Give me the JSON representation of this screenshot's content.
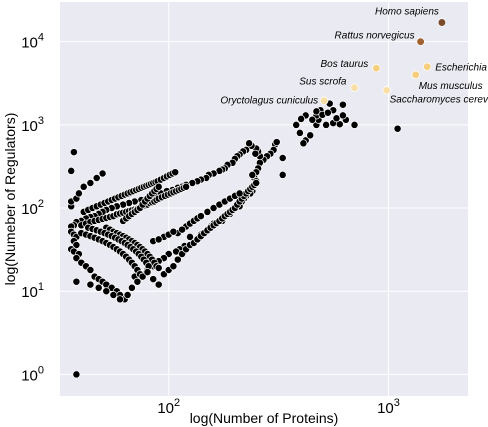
{
  "chart_data": {
    "type": "scatter",
    "title": "",
    "xlabel": "log(Number of Proteins)",
    "ylabel": "log(Numeber of Regulators)",
    "xscale": "log",
    "yscale": "log",
    "xlim": [
      32,
      2300
    ],
    "ylim": [
      0.55,
      30000
    ],
    "grid": true,
    "background": "#eaeaf2",
    "x_ticks": [
      {
        "value": 100,
        "base": "10",
        "exp": "2"
      },
      {
        "value": 1000,
        "base": "10",
        "exp": "3"
      }
    ],
    "y_ticks": [
      {
        "value": 1,
        "base": "10",
        "exp": "0"
      },
      {
        "value": 10,
        "base": "10",
        "exp": "1"
      },
      {
        "value": 100,
        "base": "10",
        "exp": "2"
      },
      {
        "value": 1000,
        "base": "10",
        "exp": "3"
      },
      {
        "value": 10000,
        "base": "10",
        "exp": "4"
      }
    ],
    "points_color": "#000000",
    "highlighted": [
      {
        "label": "Homo sapiens",
        "x": 1750,
        "y": 17000,
        "color": "#7a4a2a"
      },
      {
        "label": "Rattus norvegicus",
        "x": 1400,
        "y": 10000,
        "color": "#a0622f"
      },
      {
        "label": "Escherichia coli",
        "x": 1500,
        "y": 5000,
        "color": "#f5cf7e"
      },
      {
        "label": "Bos taurus",
        "x": 880,
        "y": 4800,
        "color": "#f5cf7e"
      },
      {
        "label": "Mus musculus",
        "x": 1330,
        "y": 4000,
        "color": "#f5cf7e"
      },
      {
        "label": "Sus scrofa",
        "x": 700,
        "y": 2800,
        "color": "#f7dfa6"
      },
      {
        "label": "Saccharomyces cerevisiae",
        "x": 980,
        "y": 2600,
        "color": "#f7dfa6"
      },
      {
        "label": "Oryctolagus cuniculus",
        "x": 510,
        "y": 1950,
        "color": "#f7dfa6"
      }
    ],
    "points": [
      [
        1100,
        900
      ],
      [
        700,
        1000
      ],
      [
        520,
        1000
      ],
      [
        560,
        1050
      ],
      [
        470,
        1000
      ],
      [
        480,
        1150
      ],
      [
        470,
        1300
      ],
      [
        450,
        1150
      ],
      [
        490,
        1500
      ],
      [
        470,
        1450
      ],
      [
        600,
        1020
      ],
      [
        640,
        1150
      ],
      [
        580,
        1200
      ],
      [
        620,
        1300
      ],
      [
        560,
        1500
      ],
      [
        500,
        1320
      ],
      [
        530,
        1400
      ],
      [
        540,
        1800
      ],
      [
        620,
        1750
      ],
      [
        420,
        1300
      ],
      [
        400,
        1180
      ],
      [
        380,
        1000
      ],
      [
        395,
        800
      ],
      [
        420,
        650
      ],
      [
        410,
        600
      ],
      [
        440,
        750
      ],
      [
        330,
        250
      ],
      [
        330,
        400
      ],
      [
        305,
        580
      ],
      [
        310,
        620
      ],
      [
        300,
        500
      ],
      [
        290,
        450
      ],
      [
        280,
        420
      ],
      [
        270,
        380
      ],
      [
        260,
        350
      ],
      [
        255,
        300
      ],
      [
        250,
        270
      ],
      [
        245,
        230
      ],
      [
        240,
        250
      ],
      [
        250,
        210
      ],
      [
        240,
        160
      ],
      [
        235,
        150
      ],
      [
        225,
        140
      ],
      [
        220,
        130
      ],
      [
        215,
        120
      ],
      [
        210,
        105
      ],
      [
        200,
        100
      ],
      [
        190,
        85
      ],
      [
        180,
        80
      ],
      [
        175,
        70
      ],
      [
        160,
        65
      ],
      [
        155,
        60
      ],
      [
        150,
        55
      ],
      [
        145,
        50
      ],
      [
        140,
        48
      ],
      [
        135,
        42
      ],
      [
        130,
        40
      ],
      [
        125,
        45
      ],
      [
        118,
        35
      ],
      [
        112,
        32
      ],
      [
        108,
        30
      ],
      [
        100,
        28
      ],
      [
        95,
        25
      ],
      [
        90,
        23
      ],
      [
        85,
        20
      ],
      [
        80,
        18
      ],
      [
        75,
        16
      ],
      [
        70,
        15
      ],
      [
        260,
        420
      ],
      [
        255,
        480
      ],
      [
        250,
        520
      ],
      [
        248,
        450
      ],
      [
        238,
        560
      ],
      [
        232,
        600
      ],
      [
        225,
        500
      ],
      [
        218,
        480
      ],
      [
        210,
        440
      ],
      [
        205,
        420
      ],
      [
        200,
        390
      ],
      [
        195,
        350
      ],
      [
        185,
        330
      ],
      [
        180,
        300
      ],
      [
        175,
        290
      ],
      [
        170,
        280
      ],
      [
        160,
        260
      ],
      [
        152,
        250
      ],
      [
        148,
        230
      ],
      [
        140,
        220
      ],
      [
        135,
        210
      ],
      [
        128,
        200
      ],
      [
        120,
        190
      ],
      [
        115,
        180
      ],
      [
        110,
        175
      ],
      [
        104,
        165
      ],
      [
        98,
        160
      ],
      [
        92,
        150
      ],
      [
        86,
        140
      ],
      [
        80,
        130
      ],
      [
        75,
        125
      ],
      [
        70,
        120
      ],
      [
        66,
        115
      ],
      [
        62,
        110
      ],
      [
        58,
        105
      ],
      [
        55,
        100
      ],
      [
        52,
        95
      ],
      [
        50,
        90
      ],
      [
        48,
        85
      ],
      [
        46,
        80
      ],
      [
        44,
        78
      ],
      [
        42,
        75
      ],
      [
        40,
        70
      ],
      [
        38,
        68
      ],
      [
        37,
        62
      ],
      [
        36,
        60
      ],
      [
        36,
        52
      ],
      [
        37,
        48
      ],
      [
        38,
        45
      ],
      [
        37,
        40
      ],
      [
        38,
        36
      ],
      [
        36,
        32
      ],
      [
        37,
        30
      ],
      [
        39,
        28
      ],
      [
        38,
        25
      ],
      [
        40,
        22
      ],
      [
        42,
        20
      ],
      [
        44,
        18
      ],
      [
        46,
        15
      ],
      [
        48,
        14
      ],
      [
        50,
        13
      ],
      [
        52,
        12
      ],
      [
        55,
        11
      ],
      [
        58,
        10
      ],
      [
        60,
        9
      ],
      [
        63,
        8
      ],
      [
        40,
        62
      ],
      [
        42,
        65
      ],
      [
        44,
        68
      ],
      [
        46,
        70
      ],
      [
        48,
        72
      ],
      [
        50,
        74
      ],
      [
        52,
        76
      ],
      [
        54,
        78
      ],
      [
        56,
        80
      ],
      [
        58,
        84
      ],
      [
        60,
        86
      ],
      [
        62,
        88
      ],
      [
        64,
        90
      ],
      [
        66,
        92
      ],
      [
        68,
        94
      ],
      [
        70,
        96
      ],
      [
        72,
        98
      ],
      [
        74,
        100
      ],
      [
        76,
        105
      ],
      [
        78,
        108
      ],
      [
        80,
        110
      ],
      [
        82,
        115
      ],
      [
        84,
        118
      ],
      [
        86,
        120
      ],
      [
        88,
        125
      ],
      [
        90,
        130
      ],
      [
        93,
        135
      ],
      [
        96,
        140
      ],
      [
        99,
        145
      ],
      [
        102,
        150
      ],
      [
        105,
        155
      ],
      [
        108,
        160
      ],
      [
        111,
        165
      ],
      [
        114,
        170
      ],
      [
        117,
        175
      ],
      [
        120,
        180
      ],
      [
        41,
        90
      ],
      [
        43,
        95
      ],
      [
        45,
        100
      ],
      [
        47,
        105
      ],
      [
        49,
        110
      ],
      [
        51,
        115
      ],
      [
        53,
        120
      ],
      [
        55,
        125
      ],
      [
        57,
        130
      ],
      [
        59,
        135
      ],
      [
        61,
        140
      ],
      [
        63,
        145
      ],
      [
        65,
        150
      ],
      [
        67,
        155
      ],
      [
        69,
        160
      ],
      [
        71,
        165
      ],
      [
        73,
        170
      ],
      [
        75,
        175
      ],
      [
        77,
        180
      ],
      [
        79,
        185
      ],
      [
        81,
        190
      ],
      [
        83,
        195
      ],
      [
        85,
        200
      ],
      [
        87,
        205
      ],
      [
        89,
        210
      ],
      [
        92,
        220
      ],
      [
        95,
        230
      ],
      [
        98,
        240
      ],
      [
        101,
        250
      ],
      [
        104,
        260
      ],
      [
        107,
        270
      ],
      [
        36,
        105
      ],
      [
        36,
        120
      ],
      [
        38,
        130
      ],
      [
        39,
        150
      ],
      [
        41,
        180
      ],
      [
        44,
        200
      ],
      [
        47,
        230
      ],
      [
        50,
        260
      ],
      [
        36,
        280
      ],
      [
        37,
        470
      ],
      [
        52,
        58
      ],
      [
        54,
        55
      ],
      [
        56,
        52
      ],
      [
        58,
        50
      ],
      [
        60,
        48
      ],
      [
        62,
        46
      ],
      [
        64,
        44
      ],
      [
        66,
        42
      ],
      [
        68,
        40
      ],
      [
        70,
        38
      ],
      [
        72,
        36
      ],
      [
        74,
        34
      ],
      [
        76,
        32
      ],
      [
        78,
        30
      ],
      [
        80,
        28
      ],
      [
        82,
        26
      ],
      [
        84,
        24
      ],
      [
        86,
        22
      ],
      [
        88,
        20
      ],
      [
        90,
        19
      ],
      [
        43,
        58
      ],
      [
        45,
        56
      ],
      [
        47,
        54
      ],
      [
        49,
        52
      ],
      [
        51,
        50
      ],
      [
        53,
        48
      ],
      [
        55,
        46
      ],
      [
        57,
        44
      ],
      [
        59,
        42
      ],
      [
        61,
        40
      ],
      [
        63,
        38
      ],
      [
        65,
        36
      ],
      [
        67,
        34
      ],
      [
        69,
        32
      ],
      [
        71,
        30
      ],
      [
        73,
        28
      ],
      [
        75,
        26
      ],
      [
        77,
        24
      ],
      [
        79,
        22
      ],
      [
        81,
        20
      ],
      [
        40,
        50
      ],
      [
        42,
        48
      ],
      [
        44,
        46
      ],
      [
        46,
        44
      ],
      [
        48,
        42
      ],
      [
        50,
        40
      ],
      [
        52,
        38
      ],
      [
        54,
        36
      ],
      [
        56,
        34
      ],
      [
        58,
        32
      ],
      [
        60,
        30
      ],
      [
        62,
        28
      ],
      [
        64,
        26
      ],
      [
        66,
        24
      ],
      [
        68,
        22
      ],
      [
        70,
        20
      ],
      [
        72,
        18
      ],
      [
        74,
        16
      ],
      [
        38,
        13
      ],
      [
        44,
        12
      ],
      [
        48,
        11
      ],
      [
        52,
        10
      ],
      [
        56,
        9
      ],
      [
        60,
        8
      ],
      [
        65,
        9
      ],
      [
        68,
        11
      ],
      [
        72,
        13
      ],
      [
        76,
        15
      ],
      [
        80,
        17
      ],
      [
        85,
        14
      ],
      [
        90,
        12
      ],
      [
        95,
        16
      ],
      [
        100,
        18
      ],
      [
        105,
        20
      ],
      [
        110,
        24
      ],
      [
        115,
        28
      ],
      [
        120,
        32
      ],
      [
        125,
        36
      ],
      [
        130,
        38
      ],
      [
        135,
        42
      ],
      [
        140,
        46
      ],
      [
        145,
        50
      ],
      [
        150,
        54
      ],
      [
        155,
        58
      ],
      [
        160,
        62
      ],
      [
        165,
        66
      ],
      [
        170,
        70
      ],
      [
        175,
        75
      ],
      [
        180,
        80
      ],
      [
        185,
        85
      ],
      [
        190,
        90
      ],
      [
        195,
        95
      ],
      [
        200,
        100
      ],
      [
        205,
        110
      ],
      [
        210,
        120
      ],
      [
        215,
        130
      ],
      [
        220,
        140
      ],
      [
        225,
        150
      ],
      [
        230,
        160
      ],
      [
        235,
        170
      ],
      [
        240,
        180
      ],
      [
        245,
        190
      ],
      [
        250,
        200
      ],
      [
        150,
        90
      ],
      [
        160,
        100
      ],
      [
        170,
        110
      ],
      [
        180,
        120
      ],
      [
        190,
        130
      ],
      [
        200,
        140
      ],
      [
        210,
        150
      ],
      [
        120,
        60
      ],
      [
        125,
        65
      ],
      [
        130,
        70
      ],
      [
        135,
        75
      ],
      [
        140,
        80
      ],
      [
        110,
        50
      ],
      [
        115,
        55
      ],
      [
        95,
        45
      ],
      [
        100,
        48
      ],
      [
        105,
        52
      ],
      [
        85,
        40
      ],
      [
        90,
        42
      ],
      [
        62,
        70
      ],
      [
        64,
        75
      ],
      [
        66,
        80
      ],
      [
        68,
        85
      ],
      [
        70,
        90
      ],
      [
        72,
        95
      ],
      [
        74,
        100
      ],
      [
        76,
        110
      ],
      [
        78,
        120
      ],
      [
        80,
        130
      ],
      [
        82,
        140
      ],
      [
        84,
        150
      ],
      [
        86,
        160
      ],
      [
        88,
        170
      ],
      [
        90,
        180
      ],
      [
        38,
        1
      ]
    ]
  }
}
